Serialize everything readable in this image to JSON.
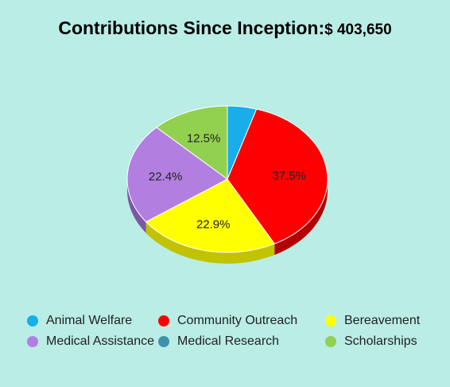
{
  "header": {
    "title": "Contributions Since Inception:",
    "amount": "$ 403,650"
  },
  "chart_data": {
    "type": "pie",
    "title": "Contributions Since Inception: $ 403,650",
    "categories": [
      "Animal Welfare",
      "Community Outreach",
      "Bereavement",
      "Medical Assistance",
      "Medical Research",
      "Scholarships"
    ],
    "values": [
      4.7,
      37.5,
      22.9,
      22.4,
      0.0,
      12.5
    ],
    "data_labels": [
      "",
      "37.5%",
      "22.9%",
      "22.4%",
      "",
      "12.5%"
    ],
    "colors": [
      "#17aeea",
      "#ff0000",
      "#ffff00",
      "#b27fe0",
      "#3d93ab",
      "#92d050"
    ],
    "side_colors": [
      "#0f8bbd",
      "#b30000",
      "#c2c200",
      "#7d56a5",
      "#2c6c7e",
      "#6b9b38"
    ],
    "legend_position": "bottom",
    "three_d": true
  }
}
